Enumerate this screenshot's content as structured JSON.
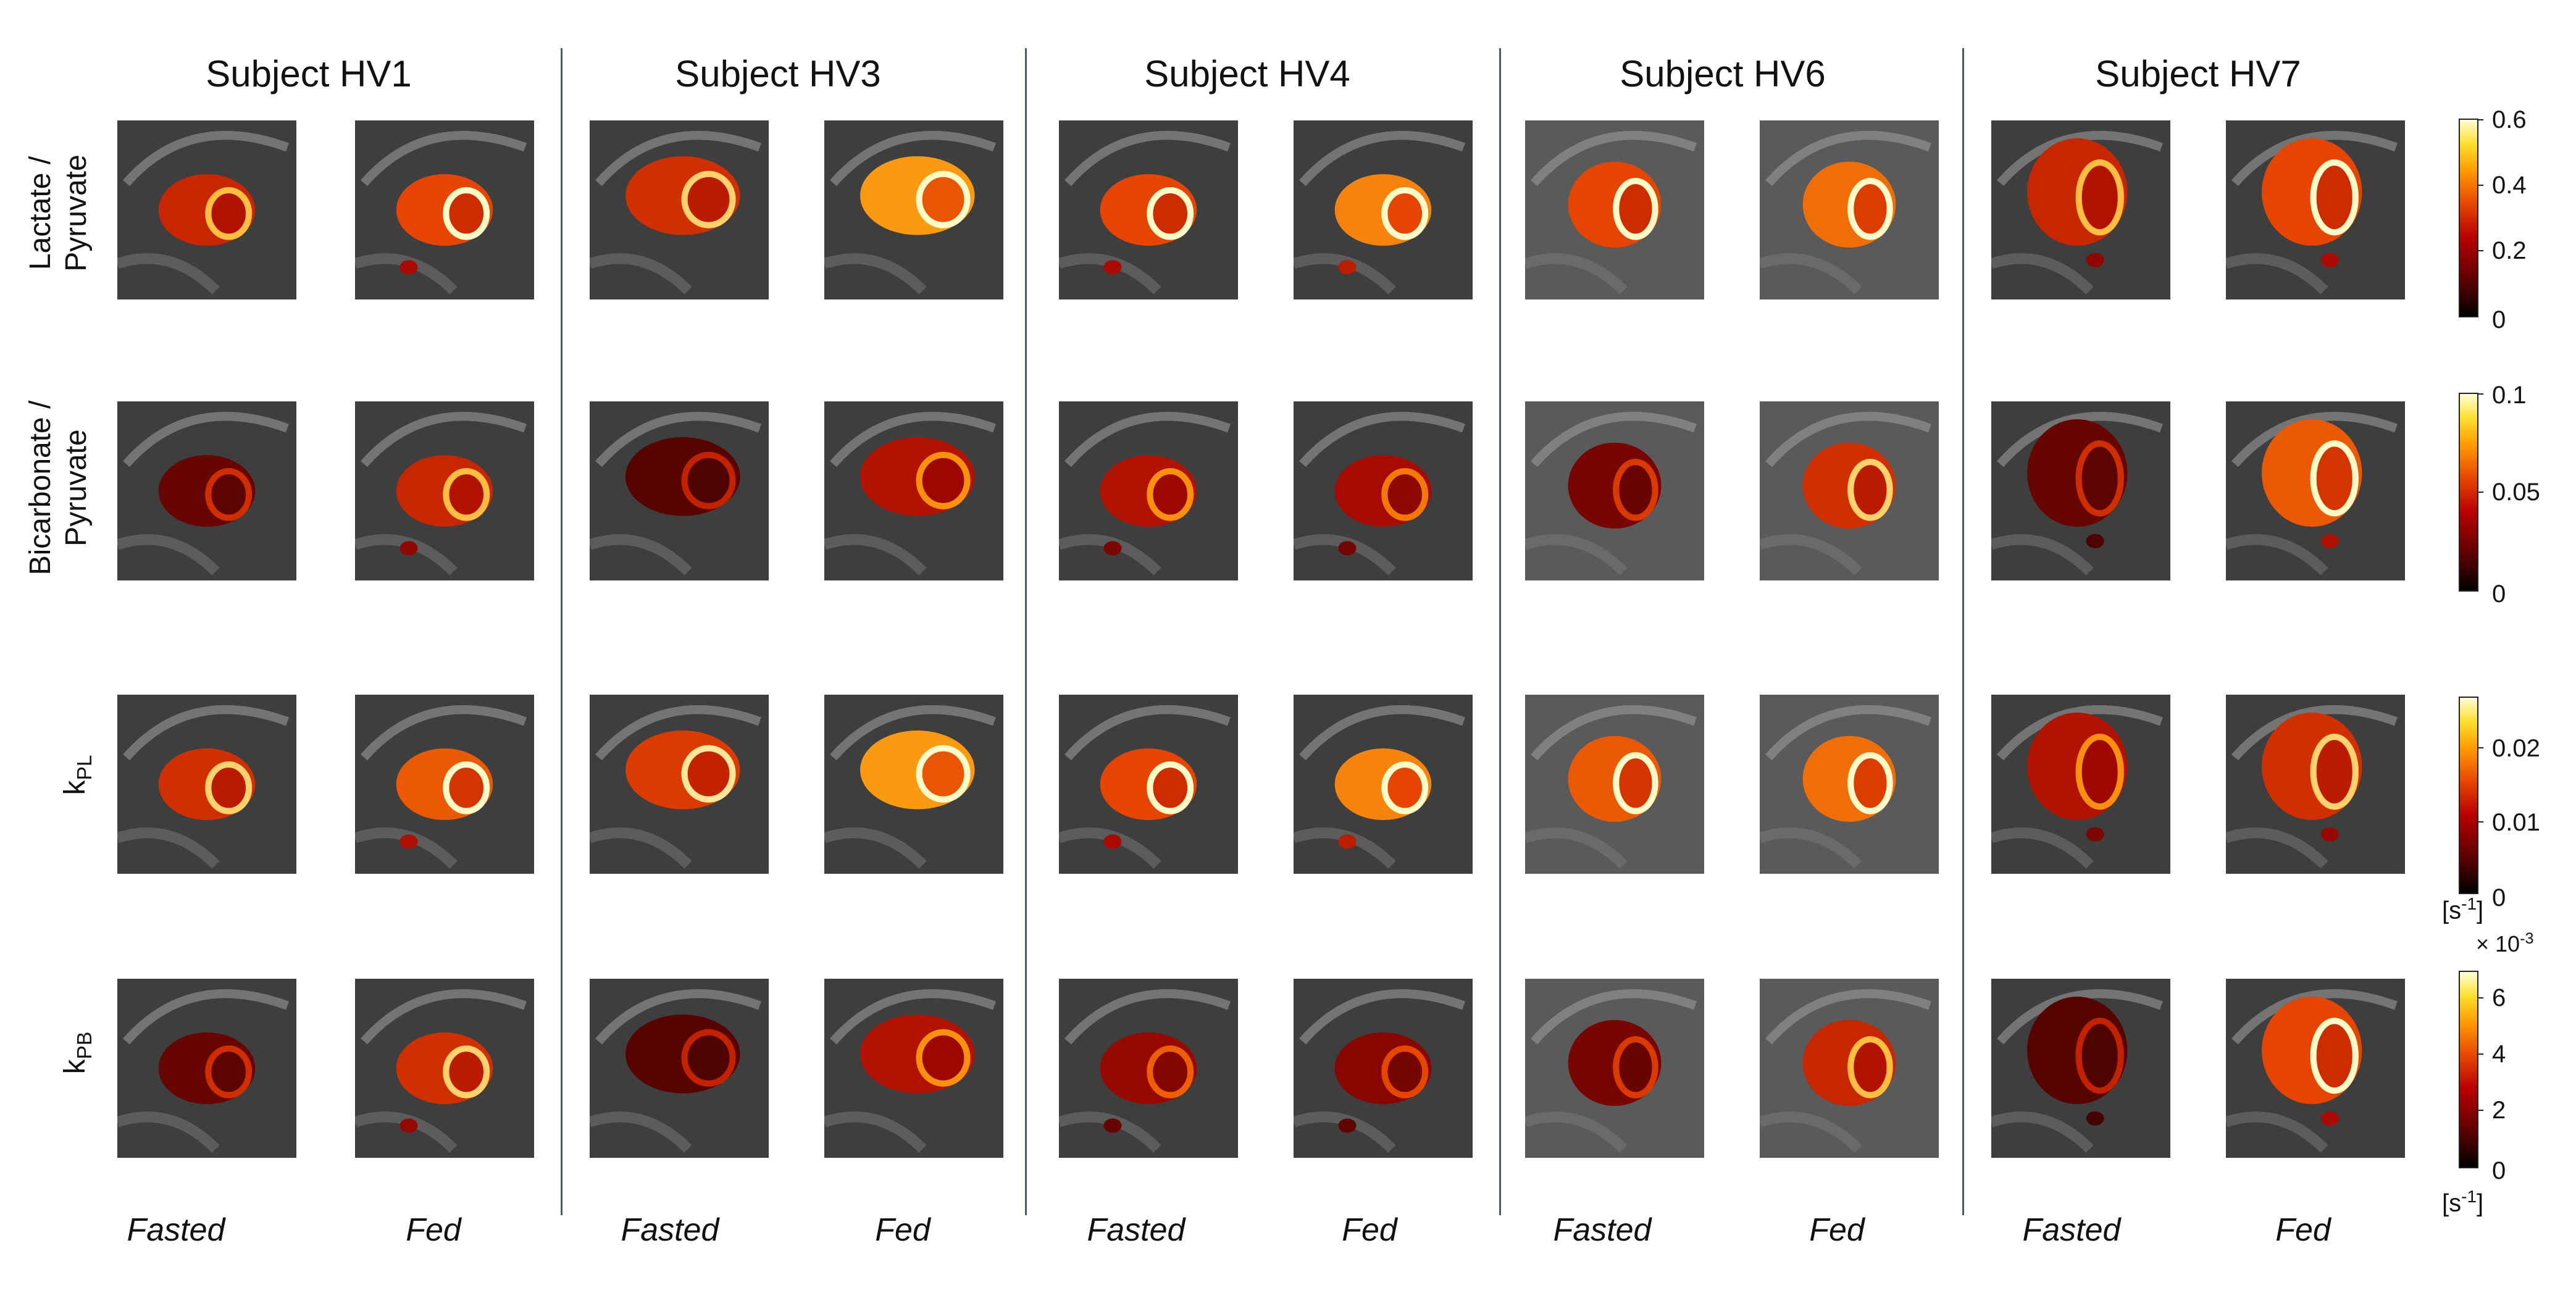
{
  "subjects": [
    "Subject HV1",
    "Subject HV3",
    "Subject HV4",
    "Subject HV6",
    "Subject HV7"
  ],
  "conditions": [
    "Fasted",
    "Fed"
  ],
  "rows": [
    {
      "label_line1": "Lactate  /",
      "label_line2": "Pyruvate"
    },
    {
      "label_line1": "Bicarbonate  /",
      "label_line2": "Pyruvate"
    },
    {
      "label_main": "k",
      "label_sub": "PL"
    },
    {
      "label_main": "k",
      "label_sub": "PB"
    }
  ],
  "colorbars": [
    {
      "ticks": [
        "0.6",
        "0.4",
        "0.2",
        "0"
      ]
    },
    {
      "ticks": [
        "0.1",
        "0.05",
        "0"
      ]
    },
    {
      "ticks": [
        "0.02",
        "0.01",
        "0"
      ],
      "unit_main": "[s",
      "unit_sup": "-1",
      "unit_end": "]"
    },
    {
      "ticks": [
        "6",
        "4",
        "2",
        "0"
      ],
      "exponent_main": "× 10",
      "exponent_sup": "-3",
      "unit_main": "[s",
      "unit_sup": "-1",
      "unit_end": "]"
    }
  ],
  "colors": {
    "low": "#000000",
    "mid": "#d00000",
    "high": "#ffa500",
    "max": "#ffffd8",
    "divider": "#4a5a6a"
  }
}
